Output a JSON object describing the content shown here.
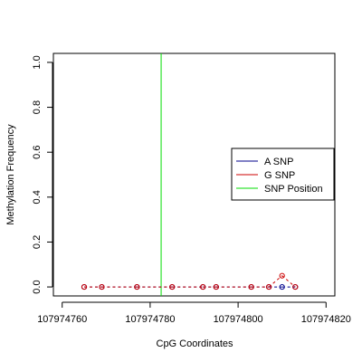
{
  "chart_data": {
    "type": "line",
    "title": "",
    "xlabel": "CpG Coordinates",
    "ylabel": "Methylation Frequency",
    "xlim": [
      107974758,
      107974822
    ],
    "ylim": [
      -0.04,
      1.04
    ],
    "x_ticks": [
      {
        "value": 107974760,
        "label": "107974760"
      },
      {
        "value": 107974780,
        "label": "107974780"
      },
      {
        "value": 107974800,
        "label": "107974800"
      },
      {
        "value": 107974820,
        "label": "107974820"
      }
    ],
    "y_ticks": [
      {
        "value": 0.0,
        "label": "0.0"
      },
      {
        "value": 0.2,
        "label": "0.2"
      },
      {
        "value": 0.4,
        "label": "0.4"
      },
      {
        "value": 0.6,
        "label": "0.6"
      },
      {
        "value": 0.8,
        "label": "0.8"
      },
      {
        "value": 1.0,
        "label": "1.0"
      }
    ],
    "series": [
      {
        "name": "A SNP",
        "color": "#00008B",
        "x": [
          107974765,
          107974769,
          107974777,
          107974785,
          107974792,
          107974795,
          107974803,
          107974807,
          107974810,
          107974813
        ],
        "y": [
          0,
          0,
          0,
          0,
          0,
          0,
          0,
          0,
          0,
          0
        ]
      },
      {
        "name": "G SNP",
        "color": "#CC0000",
        "x": [
          107974765,
          107974769,
          107974777,
          107974785,
          107974792,
          107974795,
          107974803,
          107974807,
          107974810,
          107974813
        ],
        "y": [
          0,
          0,
          0,
          0,
          0,
          0,
          0,
          0,
          0.05,
          0
        ]
      }
    ],
    "snp_position": {
      "name": "SNP Position",
      "x": 107974782.5,
      "color": "#00DD00"
    },
    "grid": false,
    "legend": {
      "placement": "right",
      "entries": [
        {
          "label": "A SNP",
          "color": "#00008B"
        },
        {
          "label": "G SNP",
          "color": "#CC0000"
        },
        {
          "label": "SNP Position",
          "color": "#00DD00"
        }
      ]
    }
  }
}
